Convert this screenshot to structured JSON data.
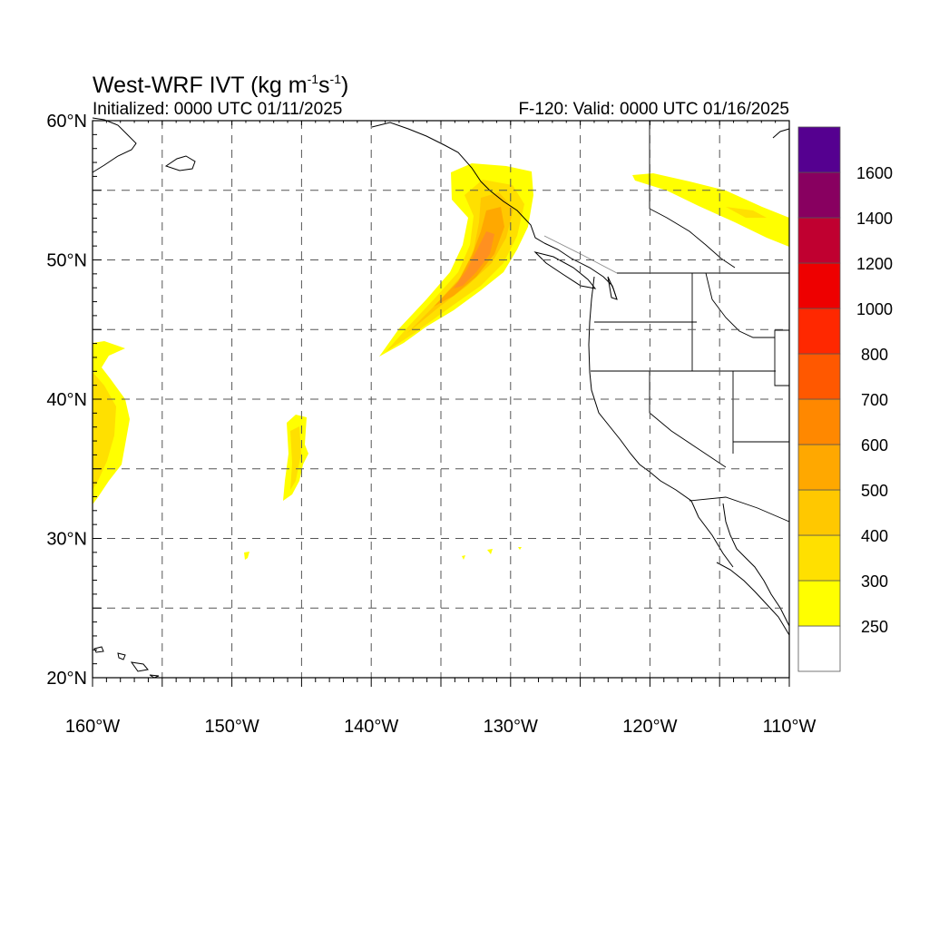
{
  "title": {
    "main": "West-WRF IVT (kg m",
    "exp1": "-1",
    "mid": "s",
    "exp2": "-1",
    "end": ")"
  },
  "initialized": "Initialized: 0000 UTC 01/11/2025",
  "valid": "F-120: Valid: 0000 UTC 01/16/2025",
  "map": {
    "lon_range": [
      -160,
      -110
    ],
    "lat_range": [
      20,
      60
    ],
    "grid_lines": "dashed",
    "lat_tick_labels": [
      {
        "lat": 60,
        "text": "60°N"
      },
      {
        "lat": 50,
        "text": "50°N"
      },
      {
        "lat": 40,
        "text": "40°N"
      },
      {
        "lat": 30,
        "text": "30°N"
      },
      {
        "lat": 20,
        "text": "20°N"
      }
    ],
    "lon_tick_labels": [
      {
        "lon": -160,
        "text": "160°W"
      },
      {
        "lon": -150,
        "text": "150°W"
      },
      {
        "lon": -140,
        "text": "140°W"
      },
      {
        "lon": -130,
        "text": "130°W"
      },
      {
        "lon": -120,
        "text": "120°W"
      },
      {
        "lon": -110,
        "text": "110°W"
      }
    ]
  },
  "colorbar": {
    "levels": [
      "250",
      "300",
      "400",
      "500",
      "600",
      "700",
      "800",
      "1000",
      "1200",
      "1400",
      "1600"
    ],
    "colors": [
      "#ffffff",
      "#ffff00",
      "#ffe000",
      "#ffc800",
      "#ffa800",
      "#ff8800",
      "#ff5800",
      "#ff2800",
      "#ee0000",
      "#c00030",
      "#880060",
      "#550090"
    ]
  }
}
